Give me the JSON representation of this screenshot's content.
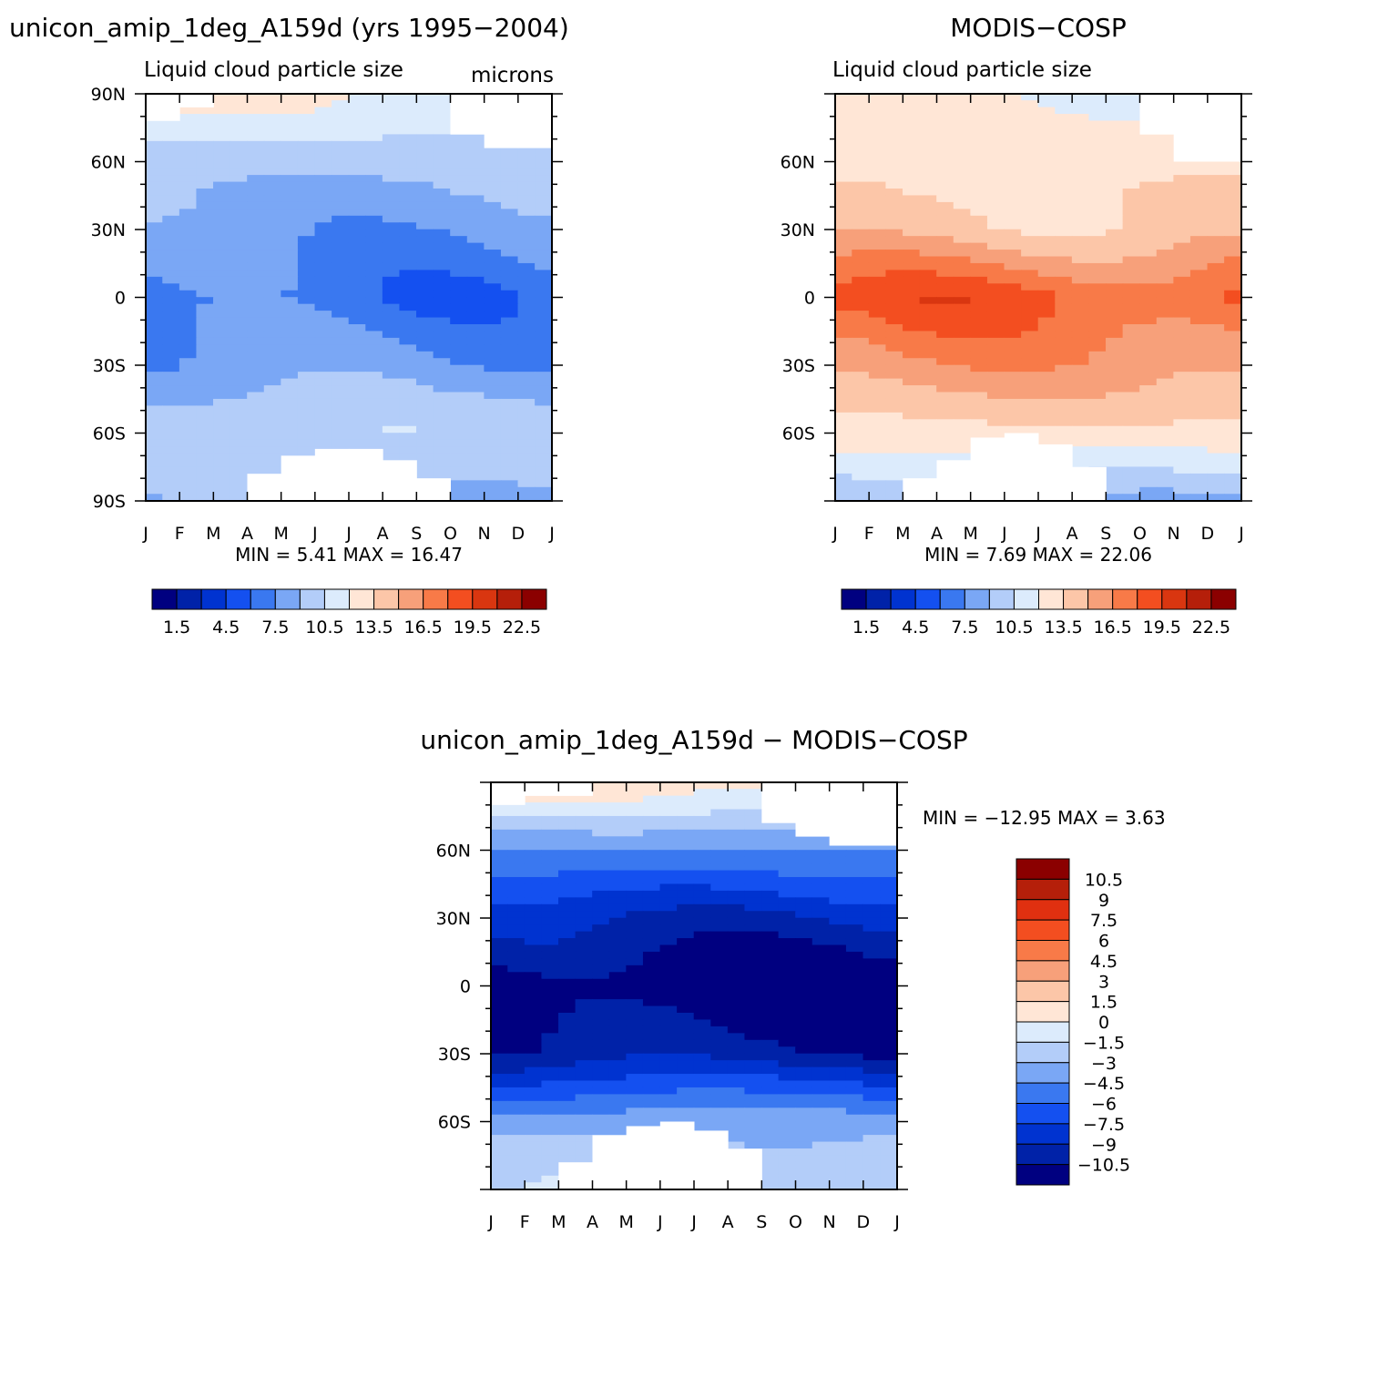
{
  "chart_data": [
    {
      "type": "heatmap",
      "title": "unicon_amip_1deg_A159d (yrs 1995−2004)",
      "subtitle": "Liquid cloud particle size",
      "units": "microns",
      "x_ticks": [
        "J",
        "F",
        "M",
        "A",
        "M",
        "J",
        "J",
        "A",
        "S",
        "O",
        "N",
        "D",
        "J"
      ],
      "y_ticks": [
        "90N",
        "60N",
        "30N",
        "0",
        "30S",
        "60S",
        "90S"
      ],
      "stats_text": "MIN =    5.41  MAX =   16.47",
      "min": 5.41,
      "max": 16.47,
      "colorbar_labels": [
        "1.5",
        "4.5",
        "7.5",
        "10.5",
        "13.5",
        "16.5",
        "19.5",
        "22.5"
      ],
      "colorbar_levels": [
        0,
        1.5,
        3,
        4.5,
        6,
        7.5,
        9,
        10.5,
        12,
        13.5,
        15,
        16.5,
        18,
        19.5,
        21,
        22.5
      ],
      "colors": [
        "#000080",
        "#0022a8",
        "#0033d0",
        "#1450f0",
        "#3a78f0",
        "#7aa7f5",
        "#b3cdf9",
        "#dcebfc",
        "#ffe6d6",
        "#fcc6a8",
        "#f7a07a",
        "#f87a48",
        "#f34e20",
        "#d93610",
        "#b51f0a",
        "#8b0000"
      ],
      "zonal_mean_profile": {
        "latitudes": [
          "90N",
          "60N",
          "30N",
          "0",
          "30S",
          "60S",
          "90S"
        ],
        "approx_values": [
          12.5,
          9.5,
          8.0,
          6.5,
          8.0,
          10.5,
          9.0
        ]
      }
    },
    {
      "type": "heatmap",
      "title": "MODIS−COSP",
      "subtitle": "Liquid cloud particle size",
      "x_ticks": [
        "J",
        "F",
        "M",
        "A",
        "M",
        "J",
        "J",
        "A",
        "S",
        "O",
        "N",
        "D",
        "J"
      ],
      "y_ticks": [
        "60N",
        "30N",
        "0",
        "30S",
        "60S"
      ],
      "stats_text": "MIN =    7.69  MAX =   22.06",
      "min": 7.69,
      "max": 22.06,
      "colorbar_labels": [
        "1.5",
        "4.5",
        "7.5",
        "10.5",
        "13.5",
        "16.5",
        "19.5",
        "22.5"
      ],
      "zonal_mean_profile": {
        "latitudes": [
          "90N",
          "60N",
          "30N",
          "0",
          "30S",
          "60S",
          "90S"
        ],
        "approx_values": [
          12.0,
          13.0,
          14.0,
          18.5,
          16.0,
          13.0,
          9.0
        ]
      }
    },
    {
      "type": "heatmap",
      "title": "unicon_amip_1deg_A159d − MODIS−COSP",
      "x_ticks": [
        "J",
        "F",
        "M",
        "A",
        "M",
        "J",
        "J",
        "A",
        "S",
        "O",
        "N",
        "D",
        "J"
      ],
      "y_ticks": [
        "60N",
        "30N",
        "0",
        "30S",
        "60S"
      ],
      "stats_text": "MIN = −12.95  MAX =    3.63",
      "min": -12.95,
      "max": 3.63,
      "colorbar_labels": [
        "10.5",
        "9",
        "7.5",
        "6",
        "4.5",
        "3",
        "1.5",
        "0",
        "−1.5",
        "−3",
        "−4.5",
        "−6",
        "−7.5",
        "−9",
        "−10.5"
      ],
      "colors": [
        "#8b0000",
        "#b51f0a",
        "#e03010",
        "#f34e20",
        "#f87a48",
        "#f7a07a",
        "#fcc6a8",
        "#ffe6d6",
        "#dcebfc",
        "#b3cdf9",
        "#7aa7f5",
        "#3a78f0",
        "#1450f0",
        "#0033d0",
        "#0022a8",
        "#000080"
      ],
      "zonal_mean_profile": {
        "latitudes": [
          "90N",
          "60N",
          "30N",
          "0",
          "30S",
          "60S",
          "90S"
        ],
        "approx_values": [
          1.0,
          -4.5,
          -9.0,
          -12.0,
          -10.0,
          -3.5,
          -1.5
        ]
      }
    }
  ]
}
